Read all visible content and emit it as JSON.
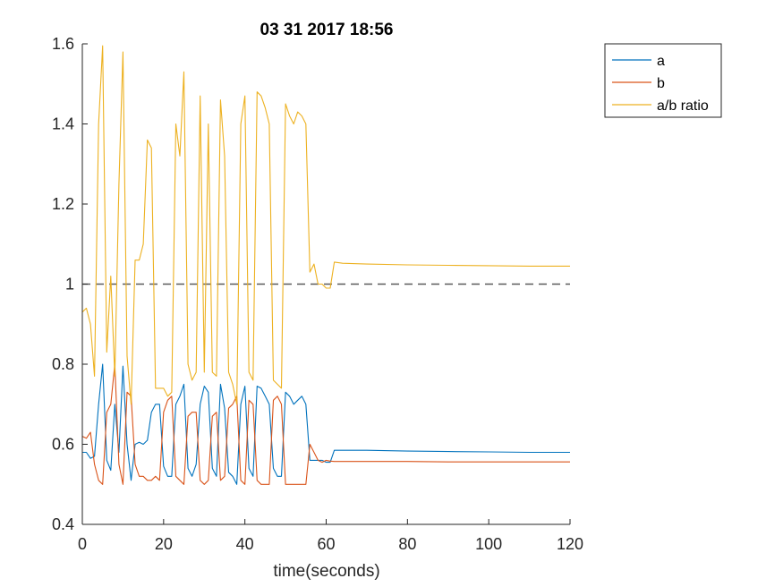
{
  "chart_data": {
    "type": "line",
    "title": "03 31 2017 18:56",
    "xlabel": "time(seconds)",
    "ylabel": "",
    "xlim": [
      0,
      120
    ],
    "ylim": [
      0.4,
      1.6
    ],
    "xticks": [
      0,
      20,
      40,
      60,
      80,
      100,
      120
    ],
    "xtick_labels": [
      "0",
      "20",
      "40",
      "60",
      "80",
      "100",
      "120"
    ],
    "yticks": [
      0.4,
      0.6,
      0.8,
      1.0,
      1.2,
      1.4,
      1.6
    ],
    "ytick_labels": [
      "0.4",
      "0.6",
      "0.8",
      "1",
      "1.2",
      "1.4",
      "1.6"
    ],
    "grid": false,
    "legend_position": "outside-top-right",
    "reference_line": {
      "y": 1.0,
      "style": "dashed",
      "color": "#5a5a5a"
    },
    "series": [
      {
        "name": "a",
        "color": "#0072BD",
        "x": [
          0,
          1,
          2,
          3,
          4,
          5,
          6,
          7,
          8,
          9,
          10,
          11,
          12,
          13,
          14,
          15,
          16,
          17,
          18,
          19,
          20,
          21,
          22,
          23,
          24,
          25,
          26,
          27,
          28,
          29,
          30,
          31,
          32,
          33,
          34,
          35,
          36,
          37,
          38,
          39,
          40,
          41,
          42,
          43,
          44,
          45,
          46,
          47,
          48,
          49,
          50,
          51,
          52,
          53,
          54,
          55,
          56,
          57,
          58,
          59,
          60,
          61,
          62,
          64,
          70,
          80,
          90,
          100,
          110,
          120
        ],
        "y": [
          0.58,
          0.58,
          0.565,
          0.57,
          0.7,
          0.8,
          0.56,
          0.535,
          0.7,
          0.58,
          0.795,
          0.6,
          0.51,
          0.6,
          0.605,
          0.6,
          0.61,
          0.68,
          0.7,
          0.7,
          0.545,
          0.52,
          0.52,
          0.7,
          0.72,
          0.75,
          0.54,
          0.52,
          0.55,
          0.7,
          0.745,
          0.73,
          0.54,
          0.52,
          0.75,
          0.69,
          0.53,
          0.52,
          0.5,
          0.7,
          0.745,
          0.54,
          0.52,
          0.745,
          0.74,
          0.72,
          0.7,
          0.54,
          0.52,
          0.52,
          0.73,
          0.72,
          0.7,
          0.71,
          0.72,
          0.7,
          0.56,
          0.56,
          0.56,
          0.56,
          0.555,
          0.555,
          0.585,
          0.585,
          0.585,
          0.583,
          0.582,
          0.581,
          0.58,
          0.58
        ]
      },
      {
        "name": "b",
        "color": "#D95319",
        "x": [
          0,
          1,
          2,
          3,
          4,
          5,
          6,
          7,
          8,
          9,
          10,
          11,
          12,
          13,
          14,
          15,
          16,
          17,
          18,
          19,
          20,
          21,
          22,
          23,
          24,
          25,
          26,
          27,
          28,
          29,
          30,
          31,
          32,
          33,
          34,
          35,
          36,
          37,
          38,
          39,
          40,
          41,
          42,
          43,
          44,
          45,
          46,
          47,
          48,
          49,
          50,
          51,
          52,
          53,
          54,
          55,
          56,
          57,
          58,
          59,
          60,
          61,
          62,
          64,
          70,
          80,
          90,
          100,
          110,
          120
        ],
        "y": [
          0.62,
          0.615,
          0.63,
          0.55,
          0.51,
          0.5,
          0.68,
          0.7,
          0.8,
          0.55,
          0.5,
          0.73,
          0.72,
          0.55,
          0.52,
          0.52,
          0.51,
          0.51,
          0.52,
          0.51,
          0.68,
          0.71,
          0.72,
          0.52,
          0.51,
          0.5,
          0.67,
          0.68,
          0.68,
          0.51,
          0.5,
          0.51,
          0.67,
          0.68,
          0.51,
          0.52,
          0.69,
          0.7,
          0.72,
          0.51,
          0.5,
          0.71,
          0.7,
          0.51,
          0.5,
          0.5,
          0.5,
          0.71,
          0.72,
          0.7,
          0.5,
          0.5,
          0.5,
          0.5,
          0.5,
          0.5,
          0.6,
          0.58,
          0.56,
          0.555,
          0.56,
          0.558,
          0.557,
          0.557,
          0.557,
          0.557,
          0.556,
          0.556,
          0.556,
          0.556
        ]
      },
      {
        "name": "a/b ratio",
        "color": "#EDB120",
        "x": [
          0,
          1,
          2,
          3,
          4,
          5,
          6,
          7,
          8,
          9,
          10,
          11,
          12,
          13,
          14,
          15,
          16,
          17,
          18,
          19,
          20,
          21,
          22,
          23,
          24,
          25,
          26,
          27,
          28,
          29,
          30,
          31,
          32,
          33,
          34,
          35,
          36,
          37,
          38,
          39,
          40,
          41,
          42,
          43,
          44,
          45,
          46,
          47,
          48,
          49,
          50,
          51,
          52,
          53,
          54,
          55,
          56,
          57,
          58,
          59,
          60,
          61,
          62,
          64,
          70,
          80,
          90,
          100,
          110,
          120
        ],
        "y": [
          0.93,
          0.94,
          0.9,
          0.77,
          1.4,
          1.595,
          0.83,
          1.02,
          0.77,
          1.25,
          1.58,
          0.82,
          0.7,
          1.06,
          1.06,
          1.1,
          1.36,
          1.34,
          0.74,
          0.74,
          0.74,
          0.72,
          0.73,
          1.4,
          1.32,
          1.53,
          0.8,
          0.76,
          0.78,
          1.47,
          0.78,
          1.4,
          0.78,
          0.77,
          1.46,
          1.32,
          0.78,
          0.75,
          0.7,
          1.4,
          1.47,
          0.78,
          0.76,
          1.48,
          1.47,
          1.44,
          1.4,
          0.76,
          0.75,
          0.74,
          1.45,
          1.42,
          1.4,
          1.43,
          1.42,
          1.4,
          1.03,
          1.05,
          1.0,
          1.0,
          0.99,
          0.99,
          1.055,
          1.052,
          1.05,
          1.048,
          1.047,
          1.046,
          1.045,
          1.045
        ]
      }
    ]
  }
}
